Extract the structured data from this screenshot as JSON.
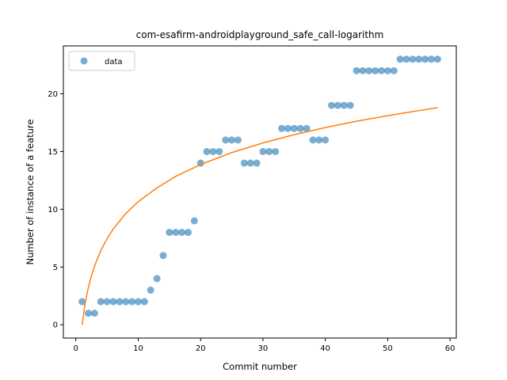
{
  "chart_data": {
    "type": "scatter",
    "title": "com-esafirm-androidplayground_safe_call-logarithm",
    "xlabel": "Commit number",
    "ylabel": "Number of instance of a feature",
    "xlim": [
      -2.0,
      61.0
    ],
    "ylim": [
      -1.15,
      24.15
    ],
    "xticks": [
      0,
      10,
      20,
      30,
      40,
      50,
      60
    ],
    "yticks": [
      0,
      5,
      10,
      15,
      20
    ],
    "grid": false,
    "legend": {
      "placement": "top-left",
      "entries": [
        "data"
      ]
    },
    "colors": {
      "points": "#1f77b4",
      "fit": "#ff7f0e"
    },
    "series": [
      {
        "name": "data",
        "kind": "scatter",
        "x": [
          1,
          2,
          3,
          4,
          5,
          6,
          7,
          8,
          9,
          10,
          11,
          12,
          13,
          14,
          15,
          16,
          17,
          18,
          19,
          20,
          21,
          22,
          23,
          24,
          25,
          26,
          27,
          28,
          29,
          30,
          31,
          32,
          33,
          34,
          35,
          36,
          37,
          38,
          39,
          40,
          41,
          42,
          43,
          44,
          45,
          46,
          47,
          48,
          49,
          50,
          51,
          52,
          53,
          54,
          55,
          56,
          57,
          58
        ],
        "y": [
          2,
          1,
          1,
          2,
          2,
          2,
          2,
          2,
          2,
          2,
          2,
          3,
          4,
          6,
          8,
          8,
          8,
          8,
          9,
          14,
          15,
          15,
          15,
          16,
          16,
          16,
          14,
          14,
          14,
          15,
          15,
          15,
          17,
          17,
          17,
          17,
          17,
          16,
          16,
          16,
          19,
          19,
          19,
          19,
          22,
          22,
          22,
          22,
          22,
          22,
          22,
          23,
          23,
          23,
          23,
          23,
          23,
          23
        ]
      },
      {
        "kind": "line",
        "x": [
          1,
          1.5,
          2,
          2.5,
          3,
          4,
          5,
          6,
          8,
          10,
          13,
          16,
          20,
          25,
          30,
          35,
          40,
          45,
          50,
          55,
          58
        ],
        "y": [
          0.0,
          1.88,
          3.21,
          4.25,
          5.09,
          6.42,
          7.45,
          8.3,
          9.63,
          10.66,
          11.85,
          12.85,
          13.88,
          14.91,
          15.75,
          16.46,
          17.08,
          17.63,
          18.11,
          18.55,
          18.8
        ]
      }
    ]
  }
}
